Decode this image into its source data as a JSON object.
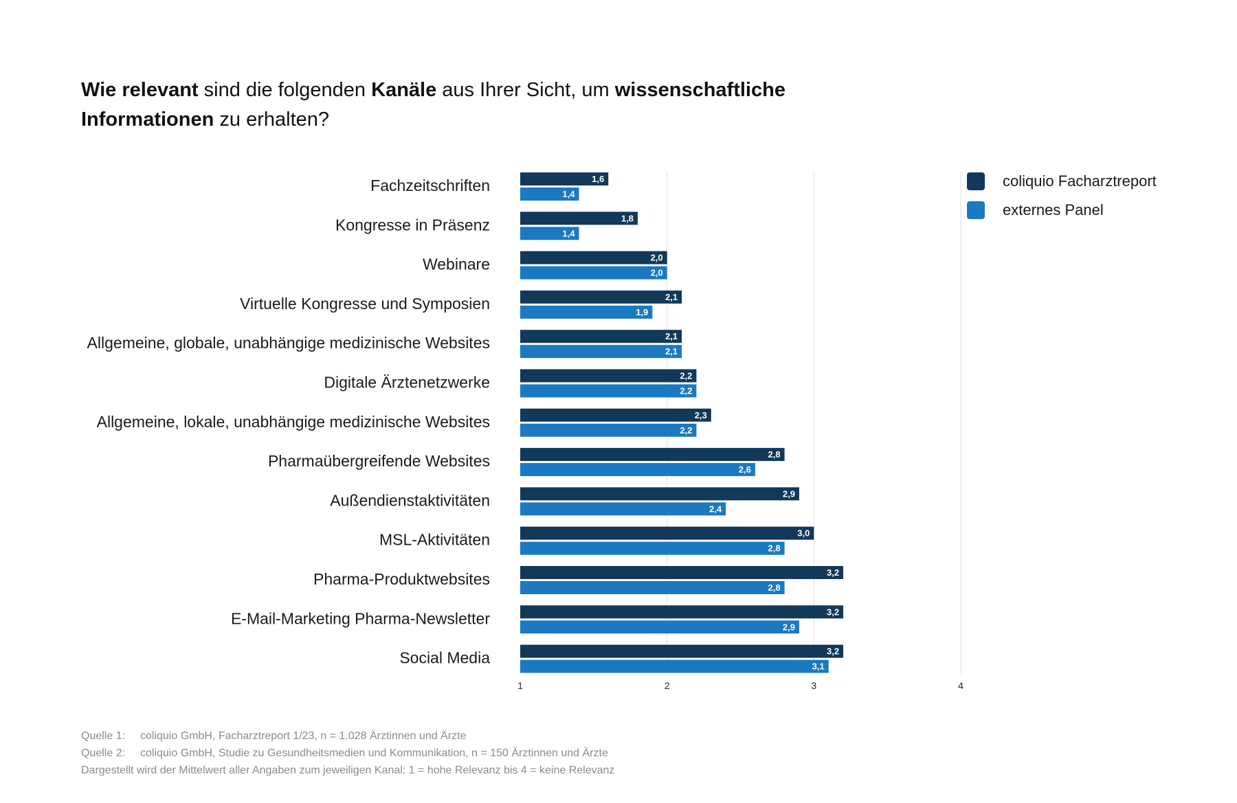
{
  "title": {
    "parts": [
      {
        "text": "Wie relevant",
        "bold": true
      },
      {
        "text": " sind die folgenden ",
        "bold": false
      },
      {
        "text": "Kanäle",
        "bold": true
      },
      {
        "text": " aus Ihrer Sicht, um ",
        "bold": false
      },
      {
        "text": "wissenschaftliche Informationen",
        "bold": true
      },
      {
        "text": " zu erhalten?",
        "bold": false
      }
    ]
  },
  "legend": [
    {
      "label": "coliquio Facharztreport",
      "color": "#12385a"
    },
    {
      "label": "externes Panel",
      "color": "#1a79c1"
    }
  ],
  "chart_data": {
    "type": "bar",
    "orientation": "horizontal",
    "categories": [
      "Fachzeitschriften",
      "Kongresse in Präsenz",
      "Webinare",
      "Virtuelle Kongresse und Symposien",
      "Allgemeine, globale, unabhängige medizinische Websites",
      "Digitale Ärztenetzwerke",
      "Allgemeine, lokale, unabhängige medizinische Websites",
      "Pharmaübergreifende Websites",
      "Außendienstaktivitäten",
      "MSL-Aktivitäten",
      "Pharma-Produktwebsites",
      "E-Mail-Marketing Pharma-Newsletter",
      "Social Media"
    ],
    "series": [
      {
        "name": "coliquio Facharztreport",
        "color": "#12385a",
        "values": [
          1.6,
          1.8,
          2.0,
          2.1,
          2.1,
          2.2,
          2.3,
          2.8,
          2.9,
          3.0,
          3.2,
          3.2,
          3.2
        ],
        "labels": [
          "1,6",
          "1,8",
          "2,0",
          "2,1",
          "2,1",
          "2,2",
          "2,3",
          "2,8",
          "2,9",
          "3,0",
          "3,2",
          "3,2",
          "3,2"
        ]
      },
      {
        "name": "externes Panel",
        "color": "#1a79c1",
        "values": [
          1.4,
          1.4,
          2.0,
          1.9,
          2.1,
          2.2,
          2.2,
          2.6,
          2.4,
          2.8,
          2.8,
          2.9,
          3.1
        ],
        "labels": [
          "1,4",
          "1,4",
          "2,0",
          "1,9",
          "2,1",
          "2,2",
          "2,2",
          "2,6",
          "2,4",
          "2,8",
          "2,8",
          "2,9",
          "3,1"
        ]
      }
    ],
    "xlim": [
      1,
      4
    ],
    "xticks": [
      "1",
      "2",
      "3",
      "4"
    ],
    "grid": true,
    "legend_position": "top-right"
  },
  "footer": {
    "sources": [
      {
        "key": "Quelle 1:",
        "text": "coliquio GmbH, Facharztreport 1/23, n = 1.028 Ärztinnen und Ärzte"
      },
      {
        "key": "Quelle 2:",
        "text": "coliquio GmbH, Studie zu Gesundheitsmedien und Kommunikation, n = 150 Ärztinnen und Ärzte"
      }
    ],
    "note": "Dargestellt wird der Mittelwert aller Angaben zum jeweiligen Kanal: 1 = hohe Relevanz bis 4 = keine Relevanz"
  }
}
